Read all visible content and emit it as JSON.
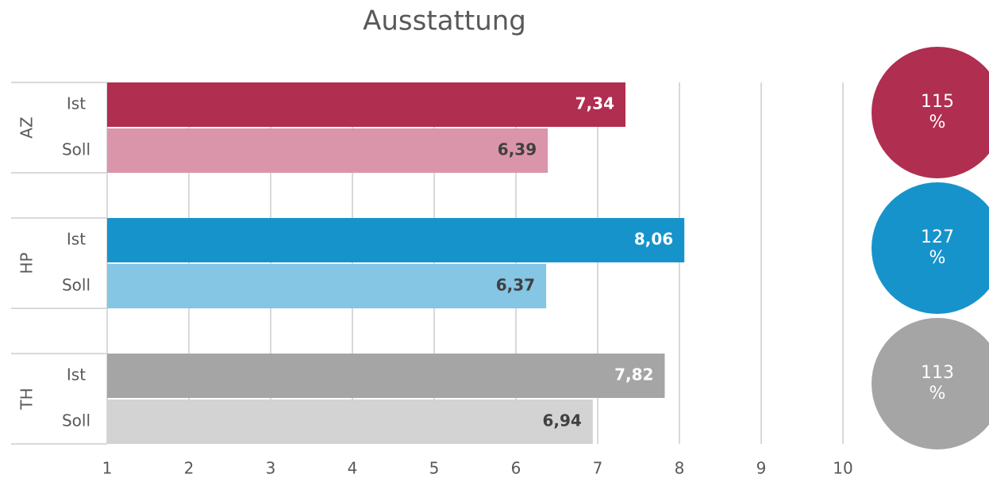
{
  "chart_data": {
    "type": "bar",
    "orientation": "horizontal",
    "title": "Ausstattung",
    "categories": [
      "Ist",
      "Soll"
    ],
    "series": [
      {
        "name": "AZ",
        "colors": [
          "#b02e50",
          "#da95aa"
        ],
        "values": [
          7.34,
          6.39
        ],
        "value_labels": [
          "7,34",
          "6,39"
        ],
        "ratio": 115,
        "ratio_label": "115 %"
      },
      {
        "name": "HP",
        "colors": [
          "#1793cb",
          "#85c6e4"
        ],
        "values": [
          8.06,
          6.37
        ],
        "value_labels": [
          "8,06",
          "6,37"
        ],
        "ratio": 127,
        "ratio_label": "127 %"
      },
      {
        "name": "TH",
        "colors": [
          "#a5a5a5",
          "#d3d3d3"
        ],
        "values": [
          7.82,
          6.94
        ],
        "value_labels": [
          "7,82",
          "6,94"
        ],
        "ratio": 113,
        "ratio_label": "113 %"
      }
    ],
    "xlim": [
      1,
      10
    ],
    "xticks": [
      1,
      2,
      3,
      4,
      5,
      6,
      7,
      8,
      9,
      10
    ],
    "grid": true
  }
}
